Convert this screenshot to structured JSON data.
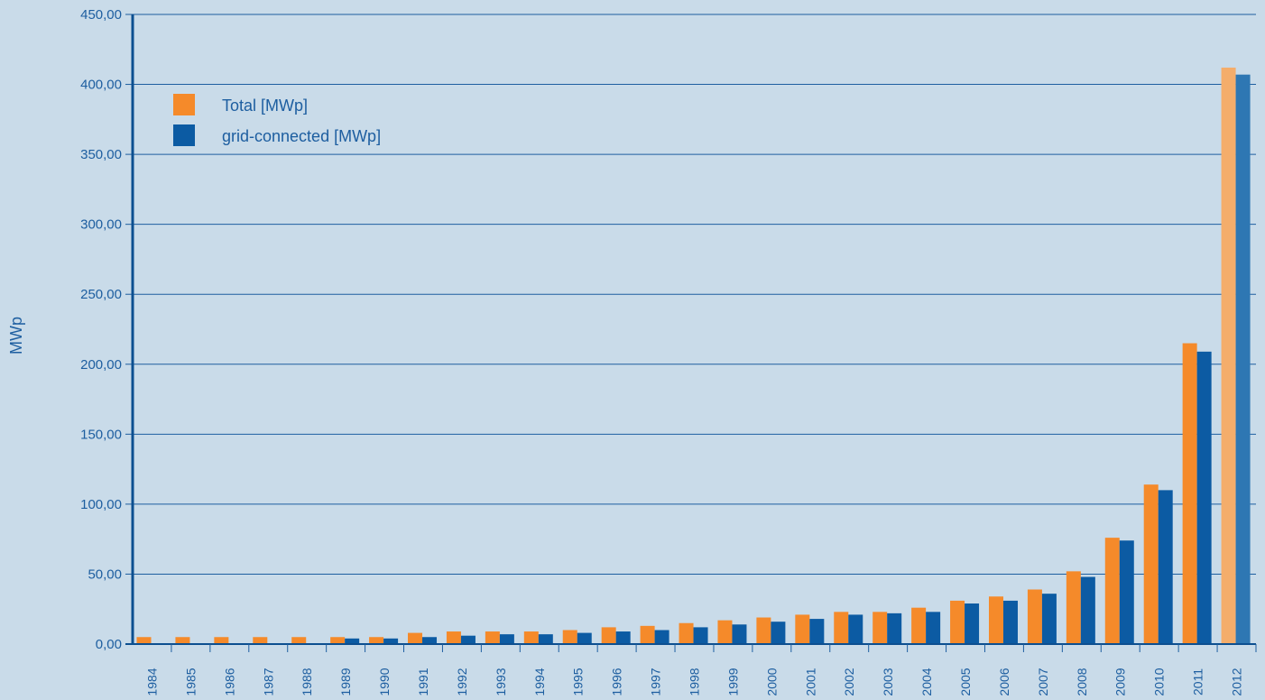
{
  "chart_data": {
    "type": "bar",
    "title": "",
    "xlabel": "",
    "ylabel": "MWp",
    "ylim": [
      0,
      450
    ],
    "yticks": [
      "0,00",
      "50,00",
      "100,00",
      "150,00",
      "200,00",
      "250,00",
      "300,00",
      "350,00",
      "400,00",
      "450,00"
    ],
    "categories": [
      "1984",
      "1985",
      "1986",
      "1987",
      "1988",
      "1989",
      "1990",
      "1991",
      "1992",
      "1993",
      "1994",
      "1995",
      "1996",
      "1997",
      "1998",
      "1999",
      "2000",
      "2001",
      "2002",
      "2003",
      "2004",
      "2005",
      "2006",
      "2007",
      "2008",
      "2009",
      "2010",
      "2011",
      "2012"
    ],
    "series": [
      {
        "name": "Total [MWp]",
        "color": "#f58a2a",
        "values": [
          5,
          5,
          5,
          5,
          5,
          5,
          5,
          8,
          9,
          9,
          9,
          10,
          12,
          13,
          15,
          17,
          19,
          21,
          23,
          23,
          26,
          31,
          34,
          39,
          52,
          76,
          114,
          215,
          412
        ]
      },
      {
        "name": "grid-connected [MWp]",
        "color": "#0c5ba3",
        "values": [
          0,
          0,
          0,
          0,
          0,
          4,
          4,
          5,
          6,
          7,
          7,
          8,
          9,
          10,
          12,
          14,
          16,
          18,
          21,
          22,
          23,
          29,
          31,
          36,
          48,
          74,
          110,
          209,
          407
        ]
      }
    ],
    "highlight_color_total": "#f4ad6b",
    "highlight_color_grid": "#2e77b3",
    "grid": true,
    "legend_position": "top-left"
  }
}
